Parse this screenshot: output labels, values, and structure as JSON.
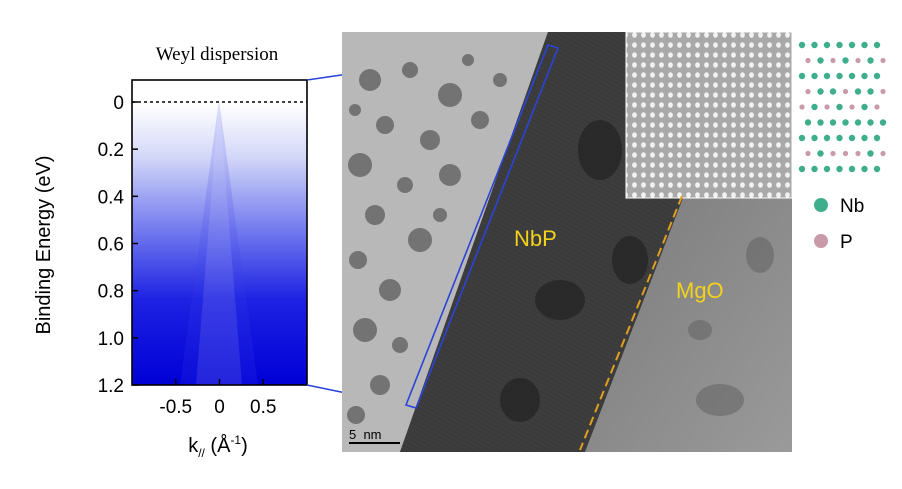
{
  "arpes": {
    "title": "Weyl dispersion",
    "ylabel": "Binding Energy (eV)",
    "xlabel_main": "k",
    "xlabel_sub": "//",
    "xlabel_unit_open": " (Å",
    "xlabel_unit_sup": "-1",
    "xlabel_unit_close": ")",
    "yticks": [
      "0",
      "0.2",
      "0.4",
      "0.6",
      "0.8",
      "1.0",
      "1.2"
    ],
    "xticks": [
      "-0.5",
      "0",
      "0.5"
    ]
  },
  "tem": {
    "layer_labels": [
      "NbP",
      "MgO"
    ],
    "label_color": "#f2d21a",
    "scalebar_label": "5  nm"
  },
  "legend": {
    "items": [
      {
        "label": "Nb",
        "color": "#3fae8c"
      },
      {
        "label": "P",
        "color": "#c99aa8"
      }
    ]
  },
  "chart_data": {
    "type": "heatmap",
    "title": "Weyl dispersion",
    "xlabel": "k// (Å-1)",
    "ylabel": "Binding Energy (eV)",
    "xticks": [
      -0.5,
      0,
      0.5
    ],
    "yticks": [
      0,
      0.2,
      0.4,
      0.6,
      0.8,
      1.0,
      1.2
    ],
    "xlim": [
      -1.0,
      1.0
    ],
    "ylim": [
      0,
      1.2
    ],
    "fermi_level_line": 0,
    "colormap": "white-to-blue",
    "colors": {
      "low": "#ffffff",
      "high": "#0000dd"
    }
  }
}
